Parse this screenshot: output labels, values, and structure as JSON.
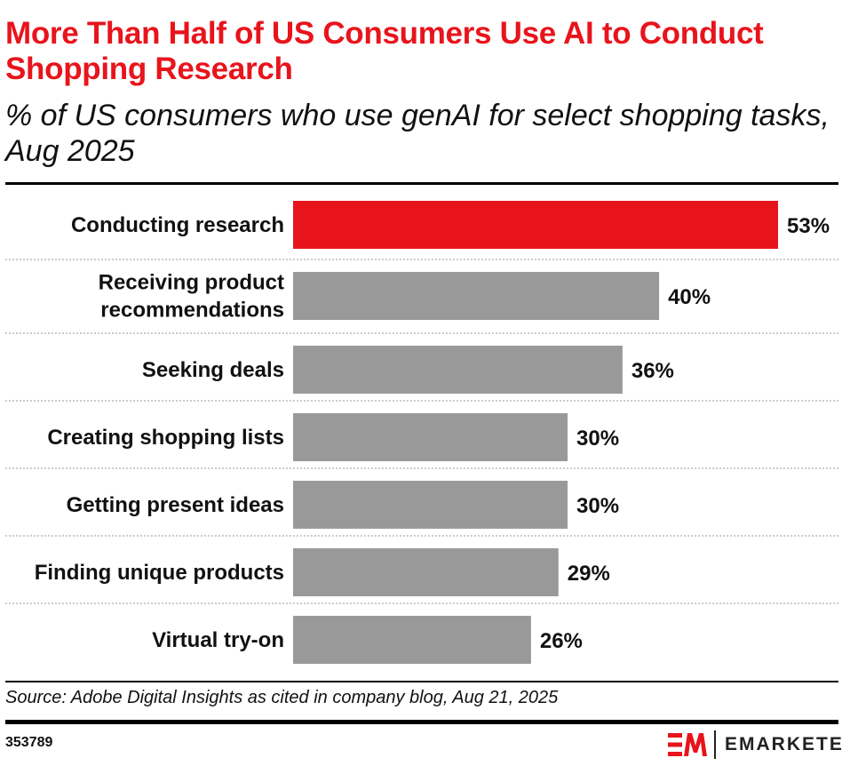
{
  "title": "More Than Half of US Consumers Use AI to Conduct Shopping Research",
  "subtitle": "% of US consumers who use genAI for select shopping tasks, Aug 2025",
  "source": "Source: Adobe Digital Insights as cited in company blog, Aug 21, 2025",
  "chart_id": "353789",
  "brand": "EMARKETER",
  "colors": {
    "highlight": "#e8141c",
    "bar": "#999999",
    "text": "#111111"
  },
  "chart_data": {
    "type": "bar",
    "orientation": "horizontal",
    "categories": [
      [
        "Conducting research"
      ],
      [
        "Receiving product",
        "recommendations"
      ],
      [
        "Seeking deals"
      ],
      [
        "Creating shopping lists"
      ],
      [
        "Getting present ideas"
      ],
      [
        "Finding unique products"
      ],
      [
        "Virtual try-on"
      ]
    ],
    "values": [
      53,
      40,
      36,
      30,
      30,
      29,
      26
    ],
    "labels": [
      "53%",
      "40%",
      "36%",
      "30%",
      "30%",
      "29%",
      "26%"
    ],
    "unit": "%",
    "highlight_index": 0,
    "grid": false
  }
}
